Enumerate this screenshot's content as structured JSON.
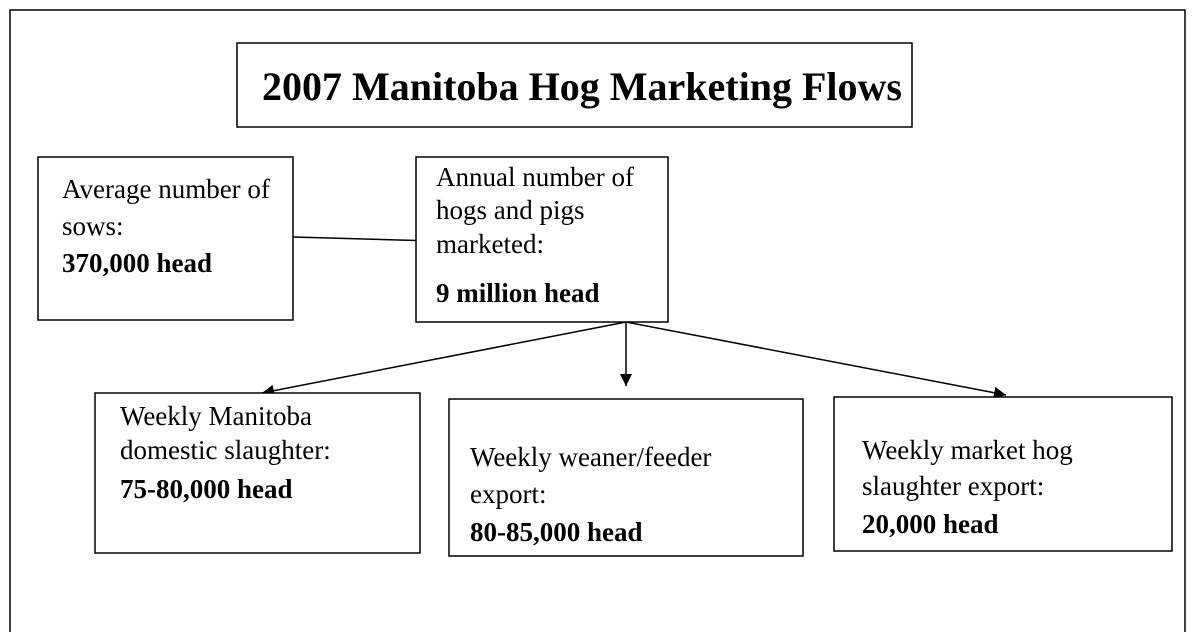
{
  "title": "2007 Manitoba Hog Marketing Flows",
  "nodes": [
    {
      "lines": [
        "Average number of",
        "sows:"
      ],
      "figure": "370,000 head"
    },
    {
      "lines": [
        "Annual number of",
        "hogs and pigs",
        "marketed:"
      ],
      "figure": "9 million head"
    },
    {
      "lines": [
        "Weekly Manitoba",
        "domestic slaughter:"
      ],
      "figure": "75-80,000 head"
    },
    {
      "lines": [
        "Weekly weaner/feeder",
        "export:"
      ],
      "figure": "80-85,000 head"
    },
    {
      "lines": [
        "Weekly market hog",
        "slaughter export:"
      ],
      "figure": "20,000 head"
    }
  ]
}
